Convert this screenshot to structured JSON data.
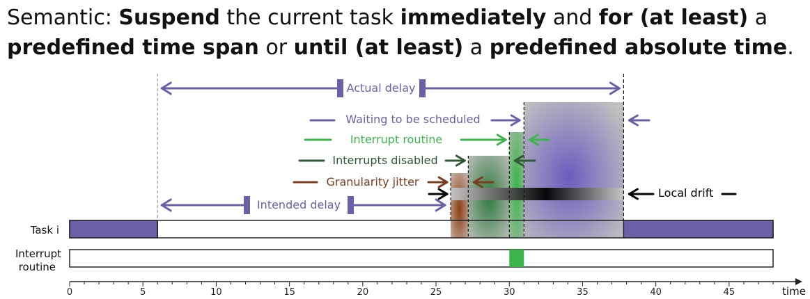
{
  "headline": {
    "line1": [
      {
        "text": "Semantic: ",
        "bold": false
      },
      {
        "text": "Suspend",
        "bold": true
      },
      {
        "text": " the current task ",
        "bold": false
      },
      {
        "text": "immediately",
        "bold": true
      },
      {
        "text": " and ",
        "bold": false
      },
      {
        "text": "for (at least)",
        "bold": true
      },
      {
        "text": " a",
        "bold": false
      }
    ],
    "line2": [
      {
        "text": "predefined time span",
        "bold": true
      },
      {
        "text": " or ",
        "bold": false
      },
      {
        "text": "until (at least)",
        "bold": true
      },
      {
        "text": " a ",
        "bold": false
      },
      {
        "text": "predefined absolute time",
        "bold": true
      },
      {
        "text": ".",
        "bold": false
      }
    ]
  },
  "colors": {
    "purple": "#6b5fa8",
    "green": "#3cb54a",
    "dark_green": "#2f5a35",
    "brown": "#7a3c1c",
    "black": "#000000",
    "grey": "#9a9a9a"
  },
  "lanes": {
    "task": "Task i",
    "interrupt_line1": "Interrupt",
    "interrupt_line2": "routine"
  },
  "axis": {
    "label": "time",
    "min": 0,
    "max": 48,
    "ticks": [
      0,
      5,
      10,
      15,
      20,
      25,
      30,
      35,
      40,
      45
    ]
  },
  "events": {
    "suspend_at": 6,
    "intended_wakeup": 26,
    "granularity_end": 27.2,
    "interrupts_disabled_end": 30,
    "interrupt_end": 31,
    "actual_wakeup": 37.8,
    "task_end": 48,
    "interrupt_routine_start": 30,
    "interrupt_routine_end": 31
  },
  "labels": {
    "actual_delay": "Actual delay",
    "waiting": "Waiting to be scheduled",
    "interrupt_routine": "Interrupt routine",
    "interrupts_disabled": "Interrupts disabled",
    "granularity_jitter": "Granularity jitter",
    "local_drift": "Local drift",
    "intended_delay": "Intended delay"
  }
}
